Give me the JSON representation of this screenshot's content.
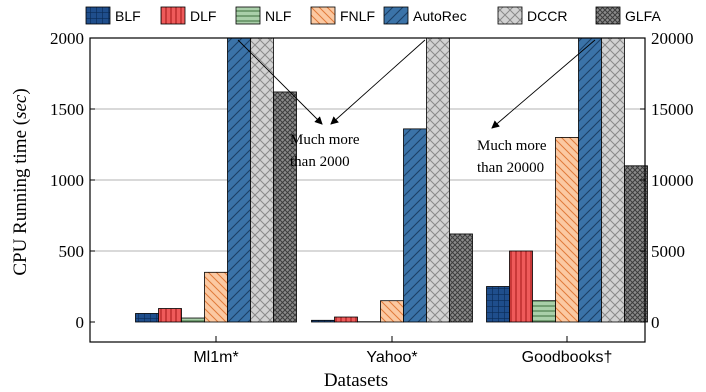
{
  "chart_data": {
    "type": "bar",
    "xlabel": "Datasets",
    "ylabel": "CPU Running time (sec)",
    "ylabel_main": "CPU Running time (",
    "ylabel_unit": "sec",
    "ylabel_close": ")",
    "categories": [
      "Ml1m",
      "Yahoo",
      "Goodbooks"
    ],
    "category_marks": [
      "*",
      "*",
      "†"
    ],
    "ylim": [
      0,
      2000
    ],
    "yticks": [
      0,
      500,
      1000,
      1500,
      2000
    ],
    "y2lim": [
      0,
      20000
    ],
    "y2ticks": [
      0,
      5000,
      10000,
      15000,
      20000
    ],
    "y2_applies_to": "Goodbooks",
    "grid": true,
    "legend_position": "top",
    "series": [
      {
        "name": "BLF",
        "values": [
          60,
          12,
          2500
        ],
        "pattern": "grid",
        "color": "#1f4e8c"
      },
      {
        "name": "DLF",
        "values": [
          95,
          35,
          5000
        ],
        "pattern": "vlines",
        "color": "#e84c4c"
      },
      {
        "name": "NLF",
        "values": [
          28,
          2,
          1500
        ],
        "pattern": "hlines",
        "color": "#a6c9a6"
      },
      {
        "name": "FNLF",
        "values": [
          350,
          150,
          13000
        ],
        "pattern": "diag-back",
        "color": "#f8b98c"
      },
      {
        "name": "AutoRec",
        "values": [
          2000,
          1360,
          20000
        ],
        "pattern": "diag-fwd",
        "color": "#3b73a8"
      },
      {
        "name": "DCCR",
        "values": [
          2000,
          2000,
          20000
        ],
        "pattern": "cross",
        "color": "#c8c8c8"
      },
      {
        "name": "GLFA",
        "values": [
          1620,
          620,
          11000
        ],
        "pattern": "dense-cross",
        "color": "#7a7a7a"
      }
    ],
    "annotations": [
      {
        "lines": [
          "Much more",
          "than 2000"
        ]
      },
      {
        "lines": [
          "Much more",
          "than 20000"
        ]
      }
    ]
  }
}
